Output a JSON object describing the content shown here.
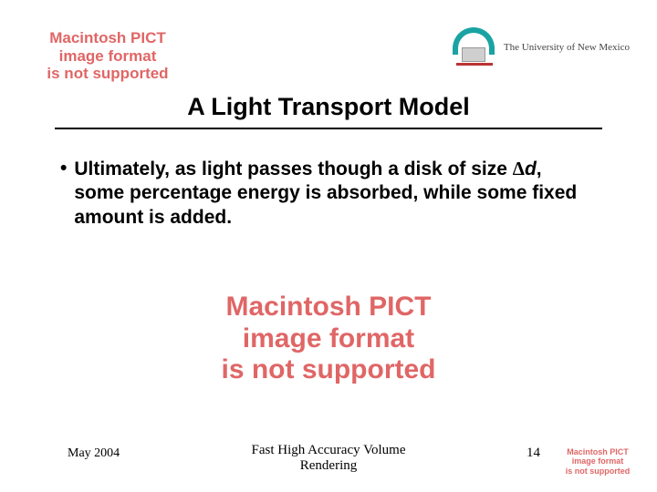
{
  "placeholder": {
    "line1": "Macintosh PICT",
    "line2": "image format",
    "line3": "is not supported",
    "color": "#e06666"
  },
  "logo": {
    "text": "The University of New Mexico",
    "arc_color": "#1aa3a3",
    "building_color": "#cfcfcf",
    "base_color": "#b33a3a"
  },
  "title": "A Light Transport Model",
  "bullet": {
    "prefix": "•",
    "text_before_delta": "Ultimately, as light passes though a disk of size ",
    "delta": "Δ",
    "var": "d",
    "text_after_var": ", some percentage energy is absorbed, while some fixed amount is added."
  },
  "footer": {
    "date": "May 2004",
    "center_line1": "Fast High Accuracy Volume",
    "center_line2": "Rendering",
    "page": "14"
  },
  "style": {
    "title_fontsize": 27,
    "body_fontsize": 21,
    "footer_fontsize": 15,
    "rule_color": "#000000",
    "background": "#ffffff"
  }
}
